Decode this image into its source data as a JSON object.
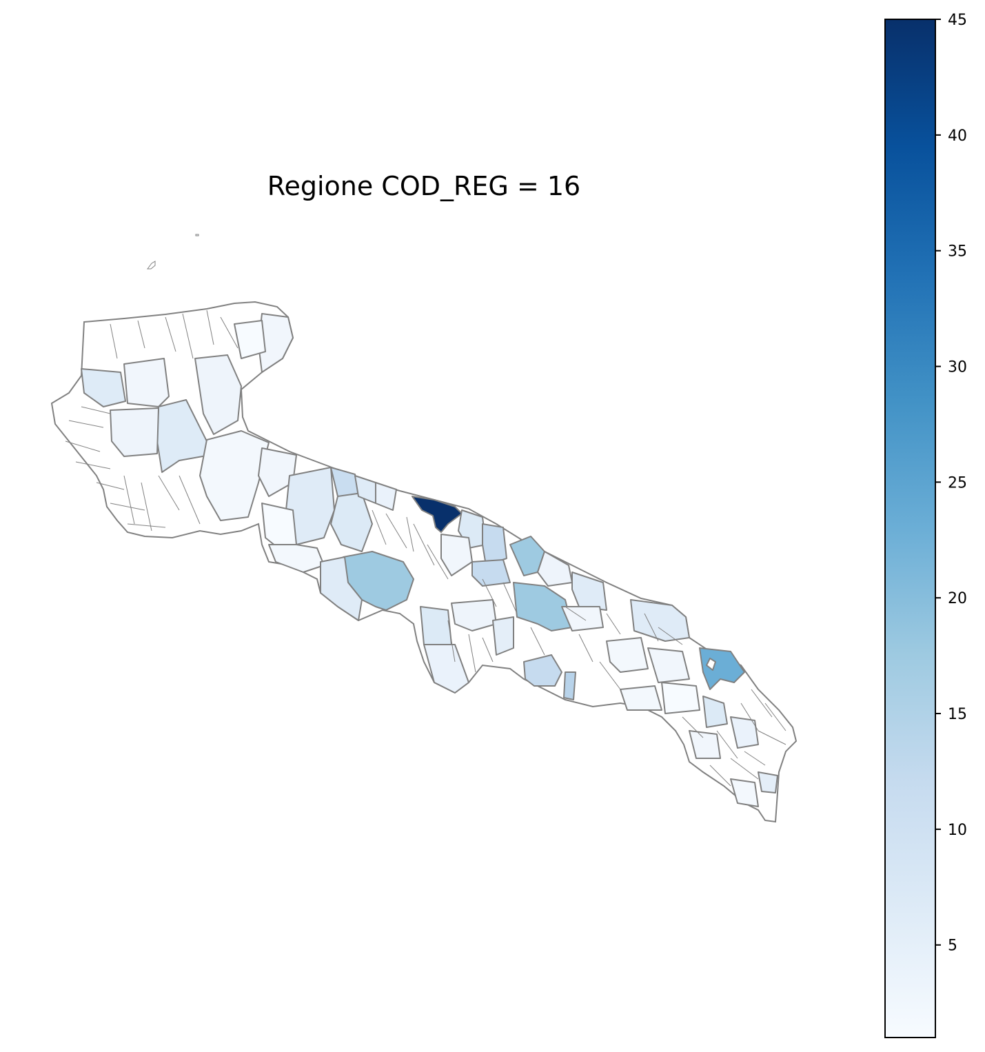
{
  "map": {
    "title": "Regione COD_REG = 16",
    "border_color": "#808080",
    "colormap": [
      "#f7fbff",
      "#deebf7",
      "#c6dbef",
      "#9ecae1",
      "#6baed6",
      "#4292c6",
      "#2171b5",
      "#08519c",
      "#08306b"
    ]
  },
  "colorbar": {
    "range": [
      1,
      45
    ],
    "ticks": [
      {
        "value": 45,
        "label": "45"
      },
      {
        "value": 40,
        "label": "40"
      },
      {
        "value": 35,
        "label": "35"
      },
      {
        "value": 30,
        "label": "30"
      },
      {
        "value": 25,
        "label": "25"
      },
      {
        "value": 20,
        "label": "20"
      },
      {
        "value": 15,
        "label": "15"
      },
      {
        "value": 10,
        "label": "10"
      },
      {
        "value": 5,
        "label": "5"
      }
    ]
  }
}
